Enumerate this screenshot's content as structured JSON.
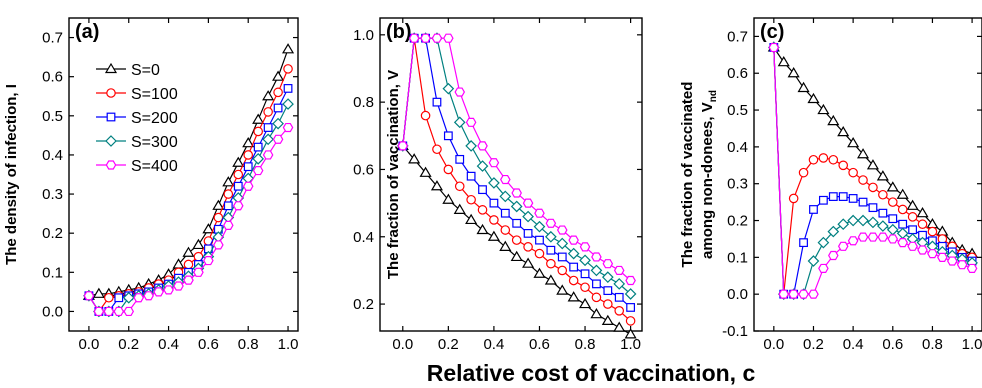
{
  "xlabel": "Relative cost of vaccination, c",
  "colors": {
    "S=0": "#000000",
    "S=100": "#ff0000",
    "S=200": "#0000ff",
    "S=300": "#008080",
    "S=400": "#ff00ff"
  },
  "markers": {
    "S=0": "triangle",
    "S=100": "circle",
    "S=200": "square",
    "S=300": "diamond",
    "S=400": "hexagon"
  },
  "chart_data": [
    {
      "type": "line",
      "panel_label": "(a)",
      "ylabel_main": "The density of infection, I",
      "ylabel_line2": "",
      "ylabel_sub": "",
      "xlim": [
        -0.1,
        1.05
      ],
      "ylim": [
        -0.05,
        0.75
      ],
      "xticks": [
        "0.0",
        "0.2",
        "0.4",
        "0.6",
        "0.8",
        "1.0"
      ],
      "yticks": [
        "0.0",
        "0.1",
        "0.2",
        "0.3",
        "0.4",
        "0.5",
        "0.6",
        "0.7"
      ],
      "legend": "upper-left",
      "series": [
        {
          "name": "S=0",
          "x": [
            0,
            0.05,
            0.1,
            0.15,
            0.2,
            0.25,
            0.3,
            0.35,
            0.4,
            0.45,
            0.5,
            0.55,
            0.6,
            0.65,
            0.7,
            0.75,
            0.8,
            0.85,
            0.9,
            0.95,
            1.0
          ],
          "y": [
            0.04,
            0.045,
            0.045,
            0.05,
            0.055,
            0.06,
            0.07,
            0.08,
            0.095,
            0.12,
            0.15,
            0.17,
            0.21,
            0.27,
            0.33,
            0.38,
            0.43,
            0.49,
            0.55,
            0.6,
            0.67
          ]
        },
        {
          "name": "S=100",
          "x": [
            0,
            0.05,
            0.1,
            0.15,
            0.2,
            0.25,
            0.3,
            0.35,
            0.4,
            0.45,
            0.5,
            0.55,
            0.6,
            0.65,
            0.7,
            0.75,
            0.8,
            0.85,
            0.9,
            0.95,
            1.0
          ],
          "y": [
            0.04,
            0.0,
            0.035,
            0.04,
            0.045,
            0.05,
            0.06,
            0.07,
            0.08,
            0.1,
            0.12,
            0.14,
            0.18,
            0.24,
            0.3,
            0.35,
            0.4,
            0.46,
            0.51,
            0.56,
            0.62
          ]
        },
        {
          "name": "S=200",
          "x": [
            0,
            0.05,
            0.1,
            0.15,
            0.2,
            0.25,
            0.3,
            0.35,
            0.4,
            0.45,
            0.5,
            0.55,
            0.6,
            0.65,
            0.7,
            0.75,
            0.8,
            0.85,
            0.9,
            0.95,
            1.0
          ],
          "y": [
            0.04,
            0.0,
            0.0,
            0.035,
            0.04,
            0.045,
            0.05,
            0.06,
            0.07,
            0.085,
            0.1,
            0.12,
            0.16,
            0.21,
            0.27,
            0.32,
            0.37,
            0.42,
            0.47,
            0.52,
            0.57
          ]
        },
        {
          "name": "S=300",
          "x": [
            0,
            0.05,
            0.1,
            0.15,
            0.2,
            0.25,
            0.3,
            0.35,
            0.4,
            0.45,
            0.5,
            0.55,
            0.6,
            0.65,
            0.7,
            0.75,
            0.8,
            0.85,
            0.9,
            0.95,
            1.0
          ],
          "y": [
            0.04,
            0.0,
            0.0,
            0.0,
            0.035,
            0.04,
            0.045,
            0.055,
            0.065,
            0.075,
            0.09,
            0.11,
            0.14,
            0.19,
            0.24,
            0.29,
            0.34,
            0.39,
            0.44,
            0.48,
            0.53
          ]
        },
        {
          "name": "S=400",
          "x": [
            0,
            0.05,
            0.1,
            0.15,
            0.2,
            0.25,
            0.3,
            0.35,
            0.4,
            0.45,
            0.5,
            0.55,
            0.6,
            0.65,
            0.7,
            0.75,
            0.8,
            0.85,
            0.9,
            0.95,
            1.0
          ],
          "y": [
            0.04,
            0.0,
            0.0,
            0.0,
            0.0,
            0.035,
            0.04,
            0.05,
            0.055,
            0.065,
            0.08,
            0.1,
            0.13,
            0.17,
            0.22,
            0.27,
            0.32,
            0.36,
            0.4,
            0.44,
            0.47
          ]
        }
      ]
    },
    {
      "type": "line",
      "panel_label": "(b)",
      "ylabel_main": "The fraction of vaccination, V",
      "ylabel_line2": "",
      "ylabel_sub": "",
      "xlim": [
        -0.1,
        1.05
      ],
      "ylim": [
        0.12,
        1.05
      ],
      "xticks": [
        "0.0",
        "0.2",
        "0.4",
        "0.6",
        "0.8",
        "1.0"
      ],
      "yticks": [
        "0.2",
        "0.4",
        "0.6",
        "0.8",
        "1.0"
      ],
      "series": [
        {
          "name": "S=0",
          "x": [
            0,
            0.05,
            0.1,
            0.15,
            0.2,
            0.25,
            0.3,
            0.35,
            0.4,
            0.45,
            0.5,
            0.55,
            0.6,
            0.65,
            0.7,
            0.75,
            0.8,
            0.85,
            0.9,
            0.95,
            1.0
          ],
          "y": [
            0.67,
            0.63,
            0.59,
            0.55,
            0.51,
            0.48,
            0.45,
            0.42,
            0.4,
            0.37,
            0.34,
            0.32,
            0.29,
            0.27,
            0.24,
            0.22,
            0.2,
            0.17,
            0.15,
            0.13,
            0.11
          ]
        },
        {
          "name": "S=100",
          "x": [
            0,
            0.05,
            0.1,
            0.15,
            0.2,
            0.25,
            0.3,
            0.35,
            0.4,
            0.45,
            0.5,
            0.55,
            0.6,
            0.65,
            0.7,
            0.75,
            0.8,
            0.85,
            0.9,
            0.95,
            1.0
          ],
          "y": [
            0.67,
            0.99,
            0.76,
            0.66,
            0.6,
            0.55,
            0.51,
            0.48,
            0.45,
            0.42,
            0.39,
            0.37,
            0.35,
            0.32,
            0.3,
            0.27,
            0.25,
            0.22,
            0.2,
            0.18,
            0.15
          ]
        },
        {
          "name": "S=200",
          "x": [
            0,
            0.05,
            0.1,
            0.15,
            0.2,
            0.25,
            0.3,
            0.35,
            0.4,
            0.45,
            0.5,
            0.55,
            0.6,
            0.65,
            0.7,
            0.75,
            0.8,
            0.85,
            0.9,
            0.95,
            1.0
          ],
          "y": [
            0.67,
            0.99,
            0.99,
            0.8,
            0.7,
            0.63,
            0.58,
            0.54,
            0.5,
            0.47,
            0.44,
            0.41,
            0.39,
            0.36,
            0.34,
            0.31,
            0.29,
            0.26,
            0.24,
            0.22,
            0.19
          ]
        },
        {
          "name": "S=300",
          "x": [
            0,
            0.05,
            0.1,
            0.15,
            0.2,
            0.25,
            0.3,
            0.35,
            0.4,
            0.45,
            0.5,
            0.55,
            0.6,
            0.65,
            0.7,
            0.75,
            0.8,
            0.85,
            0.9,
            0.95,
            1.0
          ],
          "y": [
            0.67,
            0.99,
            0.99,
            0.99,
            0.84,
            0.74,
            0.67,
            0.61,
            0.56,
            0.52,
            0.49,
            0.46,
            0.43,
            0.4,
            0.38,
            0.35,
            0.33,
            0.3,
            0.28,
            0.26,
            0.23
          ]
        },
        {
          "name": "S=400",
          "x": [
            0,
            0.05,
            0.1,
            0.15,
            0.2,
            0.25,
            0.3,
            0.35,
            0.4,
            0.45,
            0.5,
            0.55,
            0.6,
            0.65,
            0.7,
            0.75,
            0.8,
            0.85,
            0.9,
            0.95,
            1.0
          ],
          "y": [
            0.67,
            0.99,
            0.99,
            0.99,
            0.99,
            0.83,
            0.74,
            0.67,
            0.62,
            0.57,
            0.53,
            0.5,
            0.47,
            0.44,
            0.42,
            0.39,
            0.37,
            0.34,
            0.32,
            0.3,
            0.27
          ]
        }
      ]
    },
    {
      "type": "line",
      "panel_label": "(c)",
      "ylabel_main": "The fraction of vaccinated",
      "ylabel_line2": "among non-donees, V",
      "ylabel_sub": "nd",
      "xlim": [
        -0.1,
        1.05
      ],
      "ylim": [
        -0.1,
        0.75
      ],
      "xticks": [
        "0.0",
        "0.2",
        "0.4",
        "0.6",
        "0.8",
        "1.0"
      ],
      "yticks": [
        "-0.1",
        "0.0",
        "0.1",
        "0.2",
        "0.3",
        "0.4",
        "0.5",
        "0.6",
        "0.7"
      ],
      "series": [
        {
          "name": "S=0",
          "x": [
            0,
            0.05,
            0.1,
            0.15,
            0.2,
            0.25,
            0.3,
            0.35,
            0.4,
            0.45,
            0.5,
            0.55,
            0.6,
            0.65,
            0.7,
            0.75,
            0.8,
            0.85,
            0.9,
            0.95,
            1.0
          ],
          "y": [
            0.67,
            0.63,
            0.6,
            0.56,
            0.53,
            0.5,
            0.47,
            0.44,
            0.41,
            0.38,
            0.35,
            0.32,
            0.29,
            0.27,
            0.24,
            0.22,
            0.19,
            0.17,
            0.14,
            0.12,
            0.11
          ]
        },
        {
          "name": "S=100",
          "x": [
            0,
            0.05,
            0.1,
            0.15,
            0.2,
            0.25,
            0.3,
            0.35,
            0.4,
            0.45,
            0.5,
            0.55,
            0.6,
            0.65,
            0.7,
            0.75,
            0.8,
            0.85,
            0.9,
            0.95,
            1.0
          ],
          "y": [
            0.67,
            0.0,
            0.26,
            0.33,
            0.365,
            0.37,
            0.365,
            0.35,
            0.33,
            0.31,
            0.29,
            0.27,
            0.25,
            0.23,
            0.21,
            0.19,
            0.17,
            0.15,
            0.13,
            0.11,
            0.1
          ]
        },
        {
          "name": "S=200",
          "x": [
            0,
            0.05,
            0.1,
            0.15,
            0.2,
            0.25,
            0.3,
            0.35,
            0.4,
            0.45,
            0.5,
            0.55,
            0.6,
            0.65,
            0.7,
            0.75,
            0.8,
            0.85,
            0.9,
            0.95,
            1.0
          ],
          "y": [
            0.67,
            0.0,
            0.0,
            0.14,
            0.23,
            0.255,
            0.265,
            0.265,
            0.26,
            0.25,
            0.235,
            0.22,
            0.205,
            0.19,
            0.175,
            0.16,
            0.145,
            0.13,
            0.115,
            0.1,
            0.09
          ]
        },
        {
          "name": "S=300",
          "x": [
            0,
            0.05,
            0.1,
            0.15,
            0.2,
            0.25,
            0.3,
            0.35,
            0.4,
            0.45,
            0.5,
            0.55,
            0.6,
            0.65,
            0.7,
            0.75,
            0.8,
            0.85,
            0.9,
            0.95,
            1.0
          ],
          "y": [
            0.67,
            0.0,
            0.0,
            0.0,
            0.09,
            0.14,
            0.17,
            0.19,
            0.2,
            0.2,
            0.195,
            0.185,
            0.175,
            0.165,
            0.15,
            0.14,
            0.13,
            0.115,
            0.105,
            0.095,
            0.085
          ]
        },
        {
          "name": "S=400",
          "x": [
            0,
            0.05,
            0.1,
            0.15,
            0.2,
            0.25,
            0.3,
            0.35,
            0.4,
            0.45,
            0.5,
            0.55,
            0.6,
            0.65,
            0.7,
            0.75,
            0.8,
            0.85,
            0.9,
            0.95,
            1.0
          ],
          "y": [
            0.67,
            0.0,
            0.0,
            0.0,
            0.0,
            0.07,
            0.105,
            0.13,
            0.145,
            0.155,
            0.155,
            0.155,
            0.15,
            0.14,
            0.13,
            0.12,
            0.11,
            0.1,
            0.09,
            0.08,
            0.07
          ]
        }
      ]
    }
  ]
}
